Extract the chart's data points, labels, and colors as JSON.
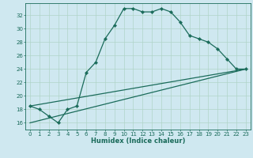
{
  "xlabel": "Humidex (Indice chaleur)",
  "ylabel": "",
  "bg_color": "#cfe8f0",
  "line_color": "#1a6b5a",
  "grid_color": "#b0d4c8",
  "xlim": [
    -0.5,
    23.5
  ],
  "ylim": [
    15.0,
    33.8
  ],
  "xticks": [
    0,
    1,
    2,
    3,
    4,
    5,
    6,
    7,
    8,
    9,
    10,
    11,
    12,
    13,
    14,
    15,
    16,
    17,
    18,
    19,
    20,
    21,
    22,
    23
  ],
  "yticks": [
    16,
    18,
    20,
    22,
    24,
    26,
    28,
    30,
    32
  ],
  "line1_x": [
    0,
    1,
    2,
    3,
    4,
    5,
    6,
    7,
    8,
    9,
    10,
    11,
    12,
    13,
    14,
    15,
    16,
    17,
    18,
    19,
    20,
    21,
    22,
    23
  ],
  "line1_y": [
    18.5,
    18.0,
    17.0,
    16.0,
    18.0,
    18.5,
    23.5,
    25.0,
    28.5,
    30.5,
    33.0,
    33.0,
    32.5,
    32.5,
    33.0,
    32.5,
    31.0,
    29.0,
    28.5,
    28.0,
    27.0,
    25.5,
    24.0,
    24.0
  ],
  "line2_x": [
    0,
    23
  ],
  "line2_y": [
    16.0,
    24.0
  ],
  "line3_x": [
    0,
    23
  ],
  "line3_y": [
    18.5,
    24.0
  ],
  "marker": "D",
  "markersize": 2.2,
  "linewidth": 0.9,
  "tick_fontsize": 5.0,
  "xlabel_fontsize": 6.0
}
